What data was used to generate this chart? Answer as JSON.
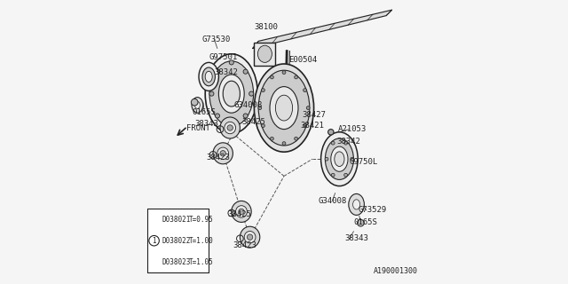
{
  "bg_color": "#f5f5f5",
  "part_number_label": "A190001300",
  "table": {
    "rows": [
      {
        "part": "D038021",
        "thickness": "T=0.95",
        "circle": false
      },
      {
        "part": "D038022",
        "thickness": "T=1.00",
        "circle": true
      },
      {
        "part": "D038023",
        "thickness": "T=1.05",
        "circle": false
      }
    ]
  },
  "line_color": "#222222",
  "label_fontsize": 6.5
}
